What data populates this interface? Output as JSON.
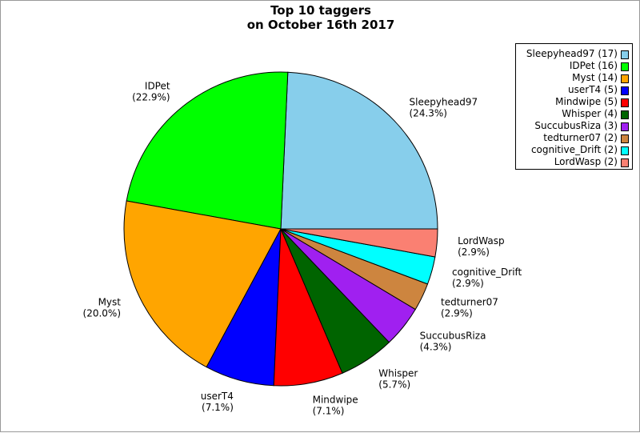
{
  "chart_data": {
    "type": "pie",
    "title": [
      "Top 10 taggers",
      "on October 16th 2017"
    ],
    "slices": [
      {
        "label": "Sleepyhead97",
        "value": 17,
        "percent": "(24.3%)",
        "legend": "Sleepyhead97 (17)",
        "color": "#87CEEB"
      },
      {
        "label": "IDPet",
        "value": 16,
        "percent": "(22.9%)",
        "legend": "IDPet (16)",
        "color": "#00FF00"
      },
      {
        "label": "Myst",
        "value": 14,
        "percent": "(20.0%)",
        "legend": "Myst (14)",
        "color": "#FFA500"
      },
      {
        "label": "userT4",
        "value": 5,
        "percent": "(7.1%)",
        "legend": "userT4 (5)",
        "color": "#0000FF"
      },
      {
        "label": "Mindwipe",
        "value": 5,
        "percent": "(7.1%)",
        "legend": "Mindwipe (5)",
        "color": "#FF0000"
      },
      {
        "label": "Whisper",
        "value": 4,
        "percent": "(5.7%)",
        "legend": "Whisper (4)",
        "color": "#006400"
      },
      {
        "label": "SuccubusRiza",
        "value": 3,
        "percent": "(4.3%)",
        "legend": "SuccubusRiza (3)",
        "color": "#A020F0"
      },
      {
        "label": "tedturner07",
        "value": 2,
        "percent": "(2.9%)",
        "legend": "tedturner07 (2)",
        "color": "#CD853F"
      },
      {
        "label": "cognitive_Drift",
        "value": 2,
        "percent": "(2.9%)",
        "legend": "cognitive_Drift (2)",
        "color": "#00FFFF"
      },
      {
        "label": "LordWasp",
        "value": 2,
        "percent": "(2.9%)",
        "legend": "LordWasp (2)",
        "color": "#FA8072"
      }
    ],
    "legend_position": "top-right"
  }
}
